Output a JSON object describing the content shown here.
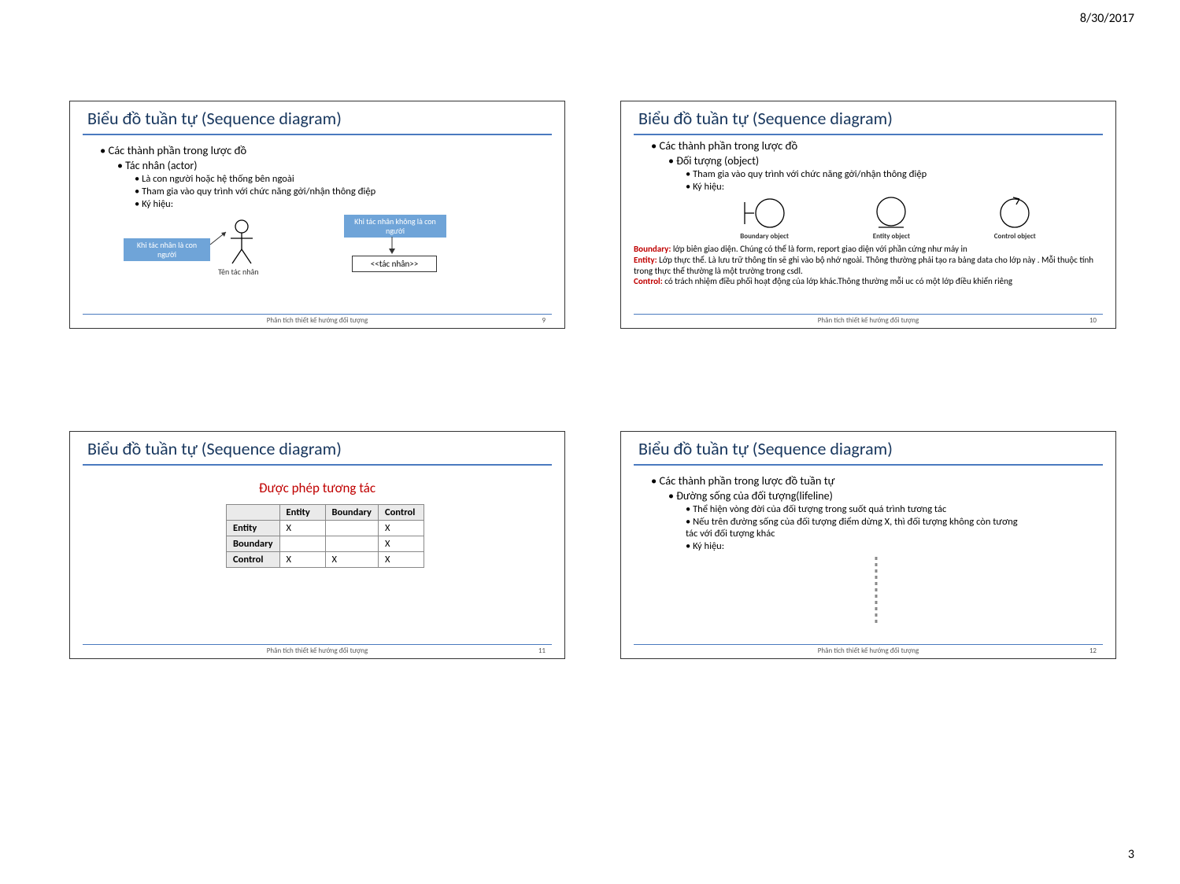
{
  "page": {
    "date": "8/30/2017",
    "number": "3"
  },
  "common": {
    "title": "Biểu đồ tuần tự (Sequence diagram)",
    "footer": "Phân tích thiết kế hướng đối tượng"
  },
  "colors": {
    "title_text": "#17365d",
    "accent_line": "#4a7abf",
    "box_blue": "#6fa4d8",
    "term_red": "#c00000",
    "border": "#333333",
    "table_border": "#888888",
    "table_header_bg": "#eaeaea"
  },
  "slide9": {
    "pagenum": "9",
    "l1": "Các thành phần trong lược đồ",
    "l2": "Tác nhân (actor)",
    "l3a": "Là con người hoặc hệ thống bên ngoài",
    "l3b": "Tham gia vào quy trình với chức năng gởi/nhận thông điệp",
    "l3c": "Ký hiệu:",
    "box_left": "Khi tác nhân là con người",
    "actor_caption": "Tên tác nhân",
    "box_right": "Khi tác nhân không là con người",
    "rect_label": "<<tác nhân>>"
  },
  "slide10": {
    "pagenum": "10",
    "l1": "Các thành phần trong lược đồ",
    "l2": "Đối tượng (object)",
    "l3a": "Tham gia vào quy trình với chức năng gởi/nhận thông điệp",
    "l3b": "Ký hiệu:",
    "obj1": "Boundary object",
    "obj2": "Entity object",
    "obj3": "Control object",
    "def1_term": "Boundary:",
    "def1": " lớp biên giao diện. Chúng có thể là form, report giao diện với phần cứng như máy in",
    "def2_term": "Entity:",
    "def2": " Lớp thực thể. Là lưu trữ thông tin sẽ ghi vào bộ nhớ ngoài. Thông thường phải tạo ra bảng data cho lớp này . Mỗi thuộc tính trong thực thể thường là một trường trong csdl.",
    "def3_term": "Control:",
    "def3": " có trách nhiệm điều phối hoạt động của lớp khác.Thông thường mỗi uc có một lớp điều khiển riêng"
  },
  "slide11": {
    "pagenum": "11",
    "subtitle": "Được phép tương tác",
    "table": {
      "cols": [
        "",
        "Entity",
        "Boundary",
        "Control"
      ],
      "rows": [
        [
          "Entity",
          "X",
          "",
          "X"
        ],
        [
          "Boundary",
          "",
          "",
          "X"
        ],
        [
          "Control",
          "X",
          "X",
          "X"
        ]
      ]
    }
  },
  "slide12": {
    "pagenum": "12",
    "l1": "Các thành phần trong lược đồ tuần tự",
    "l2": "Đường sống của đối tượng(lifeline)",
    "l3a": "Thể hiện vòng đời của đối tượng trong suốt quá trình tương tác",
    "l3b": "Nếu trên đường sống của đối tượng điểm dừng X, thì đối tượng không còn tương tác với đối tượng khác",
    "l3c": "Ký hiệu:"
  }
}
